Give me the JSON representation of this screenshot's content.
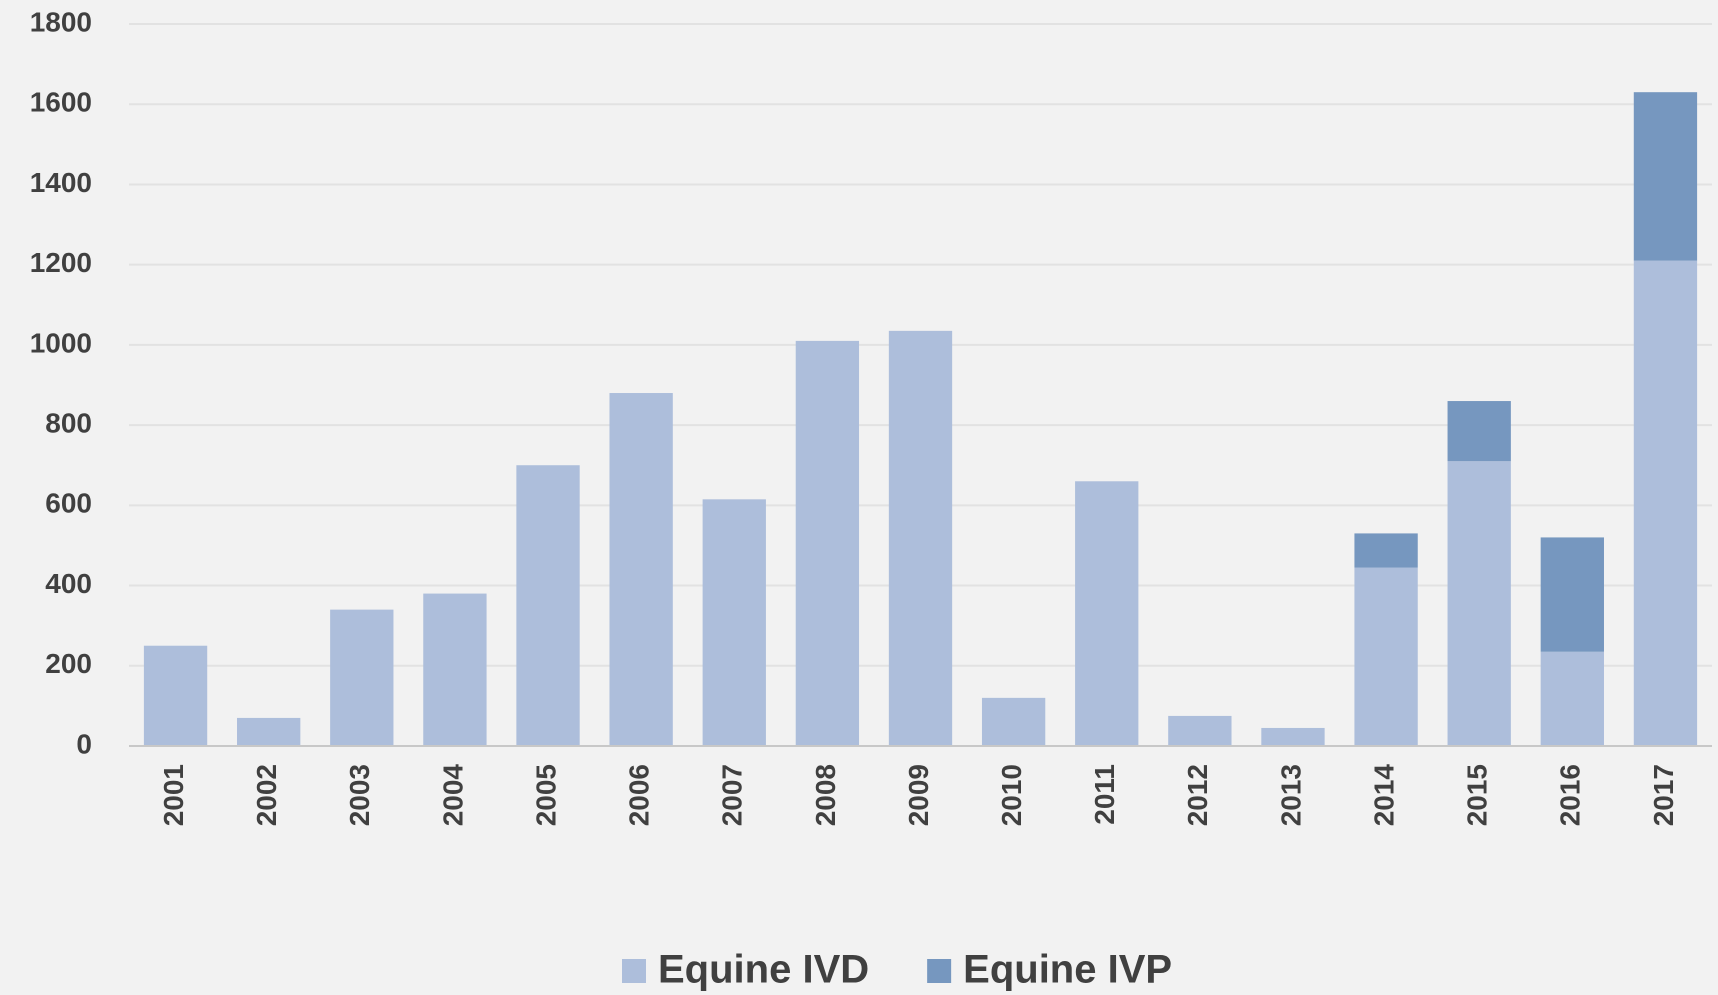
{
  "chart_data": {
    "type": "bar",
    "stacked": true,
    "categories": [
      "2001",
      "2002",
      "2003",
      "2004",
      "2005",
      "2006",
      "2007",
      "2008",
      "2009",
      "2010",
      "2011",
      "2012",
      "2013",
      "2014",
      "2015",
      "2016",
      "2017"
    ],
    "series": [
      {
        "name": "Equine IVD",
        "color": "#adbedb",
        "values": [
          250,
          70,
          340,
          380,
          700,
          880,
          615,
          1010,
          1035,
          120,
          660,
          75,
          45,
          445,
          710,
          235,
          1210
        ]
      },
      {
        "name": "Equine IVP",
        "color": "#7697bf",
        "values": [
          0,
          0,
          0,
          0,
          0,
          0,
          0,
          0,
          0,
          0,
          0,
          0,
          0,
          85,
          150,
          285,
          420
        ]
      }
    ],
    "ylim": [
      0,
      1800
    ],
    "yticks": [
      0,
      200,
      400,
      600,
      800,
      1000,
      1200,
      1400,
      1600,
      1800
    ],
    "grid": true,
    "legend": "bottom"
  }
}
